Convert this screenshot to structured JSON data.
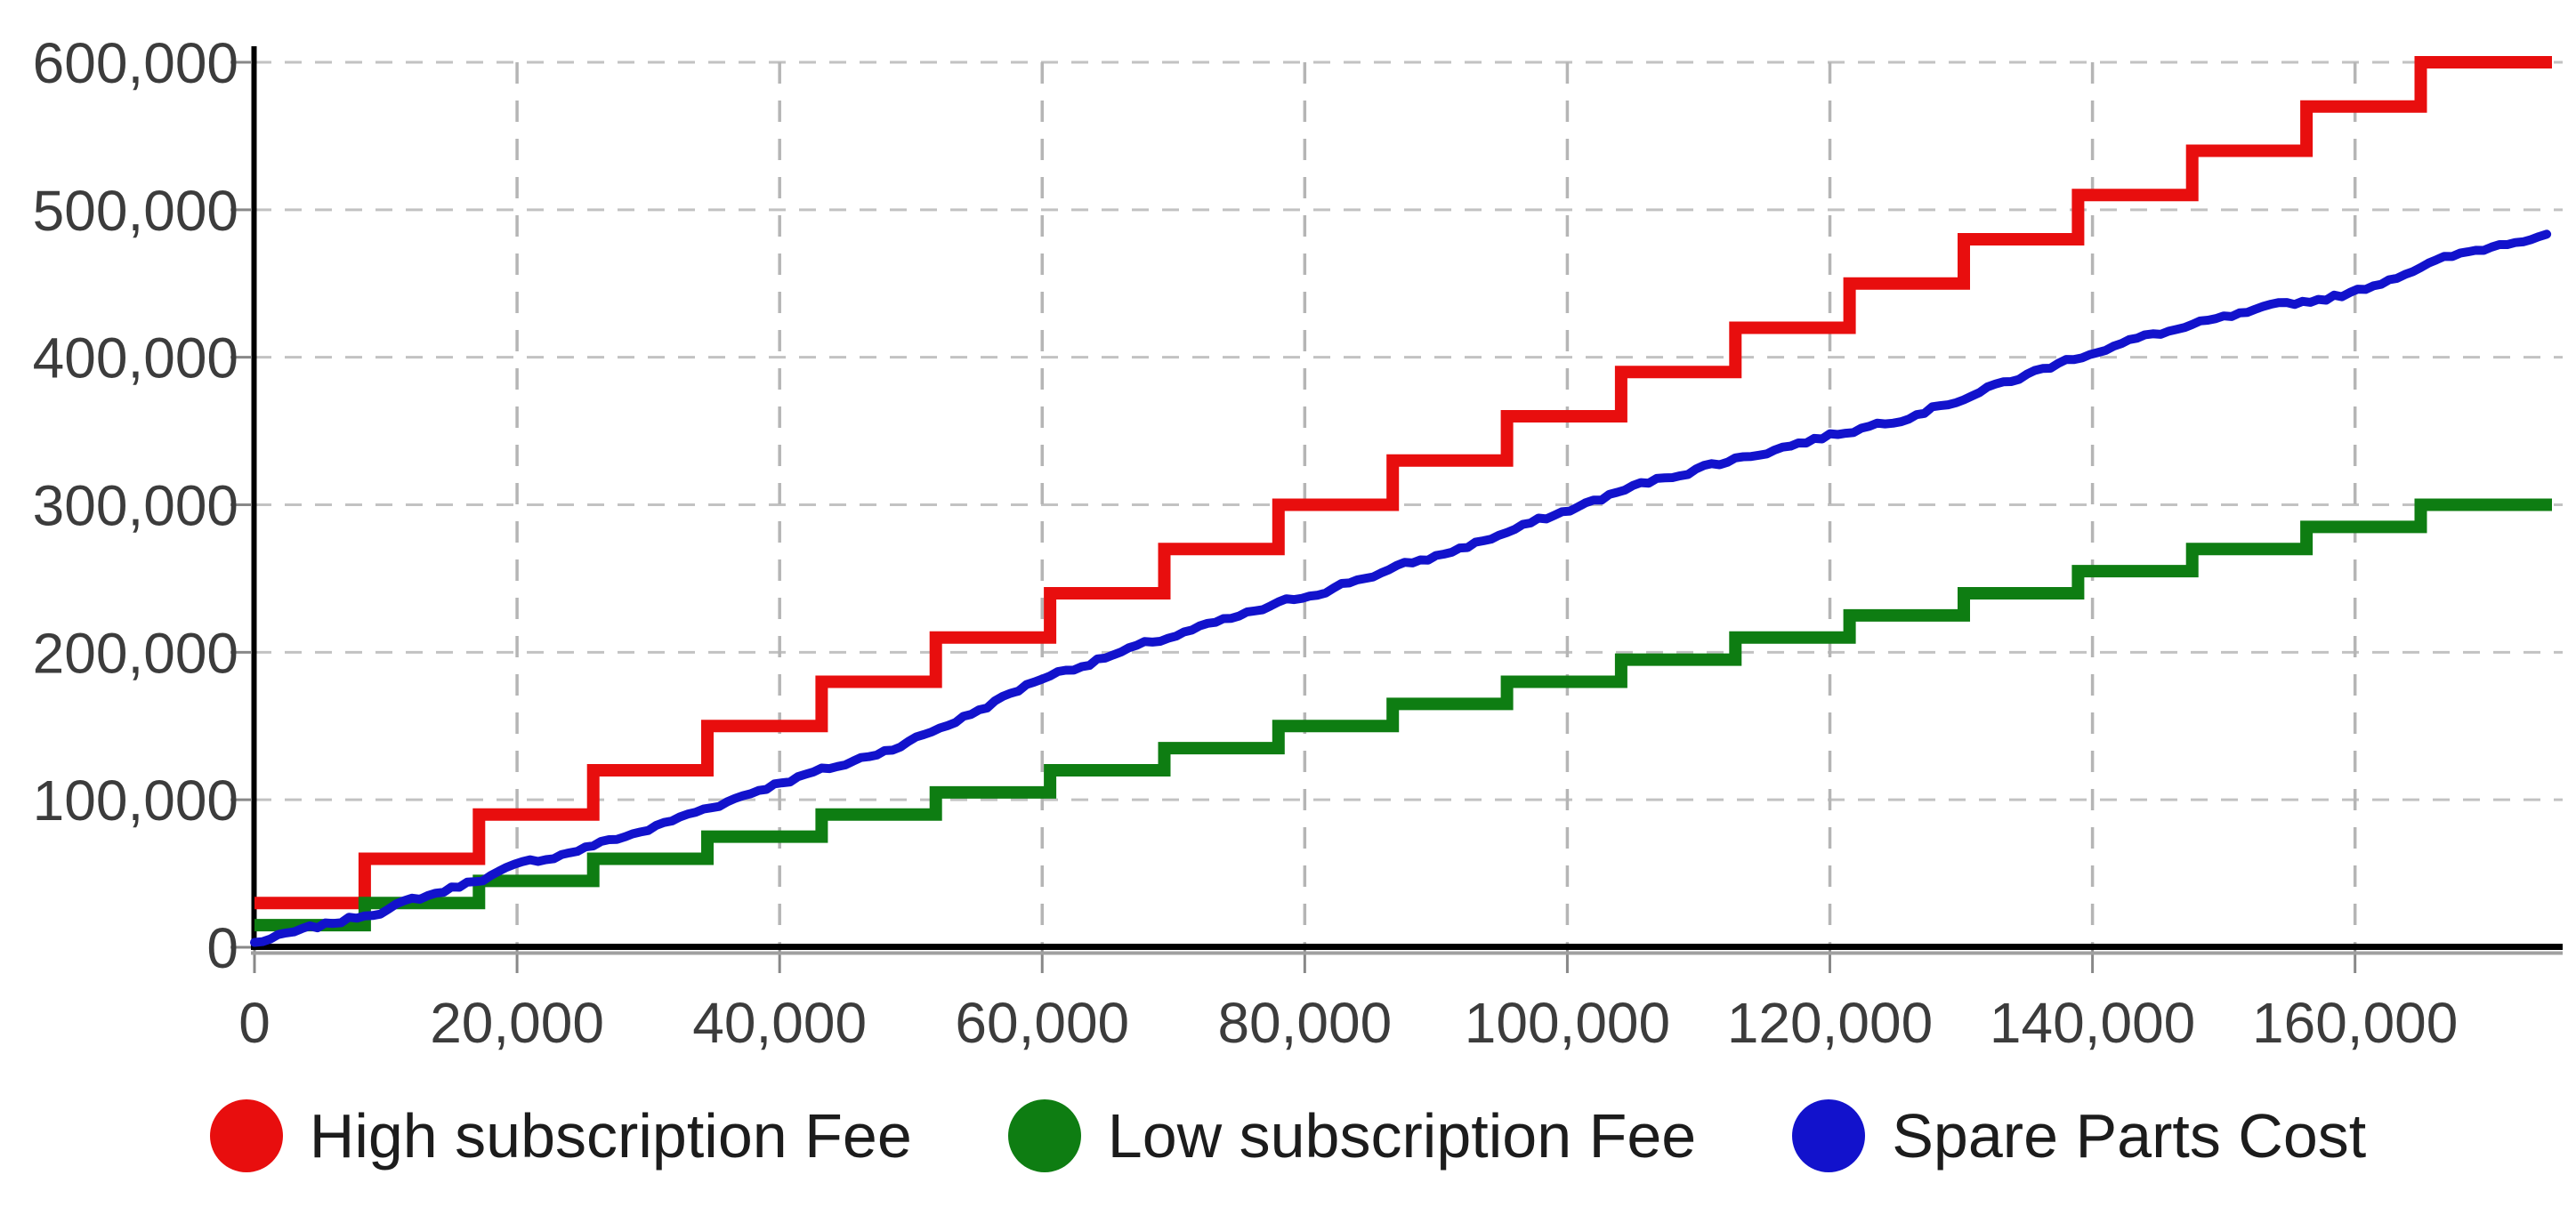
{
  "chart_data": {
    "type": "line",
    "title": "",
    "xlabel": "",
    "ylabel": "",
    "x_axis": {
      "range": [
        0,
        175000
      ],
      "ticks": [
        0,
        20000,
        40000,
        60000,
        80000,
        100000,
        120000,
        140000,
        160000
      ],
      "tick_labels": [
        "0",
        "20,000",
        "40,000",
        "60,000",
        "80,000",
        "100,000",
        "120,000",
        "140,000",
        "160,000"
      ],
      "gridlines": true
    },
    "y_axis": {
      "range": [
        0,
        600000
      ],
      "ticks": [
        0,
        100000,
        200000,
        300000,
        400000,
        500000,
        600000
      ],
      "tick_labels": [
        "0",
        "100,000",
        "200,000",
        "300,000",
        "400,000",
        "500,000",
        "600,000"
      ],
      "gridlines": true
    },
    "legend_position": "bottom",
    "step_boundaries_x": [
      0,
      8400,
      17100,
      25800,
      34500,
      43200,
      51900,
      60600,
      69300,
      78000,
      86700,
      95400,
      104100,
      112800,
      121500,
      130200,
      138900,
      147600,
      156300,
      165000,
      175000
    ],
    "series": [
      {
        "name": "High subscription Fee",
        "type": "step",
        "color": "#e80e0e",
        "stroke_width": 14,
        "values": [
          30000,
          60000,
          90000,
          120000,
          150000,
          180000,
          210000,
          240000,
          270000,
          300000,
          330000,
          360000,
          390000,
          420000,
          450000,
          480000,
          510000,
          540000,
          570000,
          600000
        ]
      },
      {
        "name": "Low subscription Fee",
        "type": "step",
        "color": "#0e7d12",
        "stroke_width": 14,
        "values": [
          15000,
          30000,
          45000,
          60000,
          75000,
          90000,
          105000,
          120000,
          135000,
          150000,
          165000,
          180000,
          195000,
          210000,
          225000,
          240000,
          255000,
          270000,
          285000,
          300000
        ]
      },
      {
        "name": "Spare Parts Cost",
        "type": "noisy-line",
        "color": "#1212cc",
        "stroke_width": 10,
        "noise_amplitude": 3500,
        "points": [
          [
            0,
            3000
          ],
          [
            5000,
            14000
          ],
          [
            10000,
            26000
          ],
          [
            15000,
            40000
          ],
          [
            20000,
            55000
          ],
          [
            25000,
            67000
          ],
          [
            30000,
            80000
          ],
          [
            35000,
            96000
          ],
          [
            40000,
            112000
          ],
          [
            45000,
            124000
          ],
          [
            50000,
            140000
          ],
          [
            55000,
            160000
          ],
          [
            60000,
            183000
          ],
          [
            65000,
            197000
          ],
          [
            70000,
            211000
          ],
          [
            75000,
            224000
          ],
          [
            80000,
            238000
          ],
          [
            85000,
            252000
          ],
          [
            90000,
            265000
          ],
          [
            95000,
            280000
          ],
          [
            100000,
            296000
          ],
          [
            105000,
            312000
          ],
          [
            110000,
            325000
          ],
          [
            115000,
            336000
          ],
          [
            120000,
            347000
          ],
          [
            125000,
            358000
          ],
          [
            130000,
            372000
          ],
          [
            135000,
            388000
          ],
          [
            140000,
            404000
          ],
          [
            145000,
            416000
          ],
          [
            150000,
            426000
          ],
          [
            155000,
            436000
          ],
          [
            160000,
            444000
          ],
          [
            165000,
            462000
          ],
          [
            170000,
            474000
          ],
          [
            175000,
            486000
          ]
        ]
      }
    ],
    "colors": {
      "axis": "#000000",
      "axis_shadow": "#a0a0a0",
      "tick_mark": "#888888",
      "gridline_h": "#c2c2c2",
      "gridline_v": "#b5b5b5",
      "tick_label": "#3c3c3c"
    }
  },
  "legend": {
    "items": [
      {
        "label": "High subscription Fee",
        "color": "#e80e0e"
      },
      {
        "label": "Low subscription Fee",
        "color": "#0e7d12"
      },
      {
        "label": "Spare Parts Cost",
        "color": "#1212cc"
      }
    ]
  }
}
